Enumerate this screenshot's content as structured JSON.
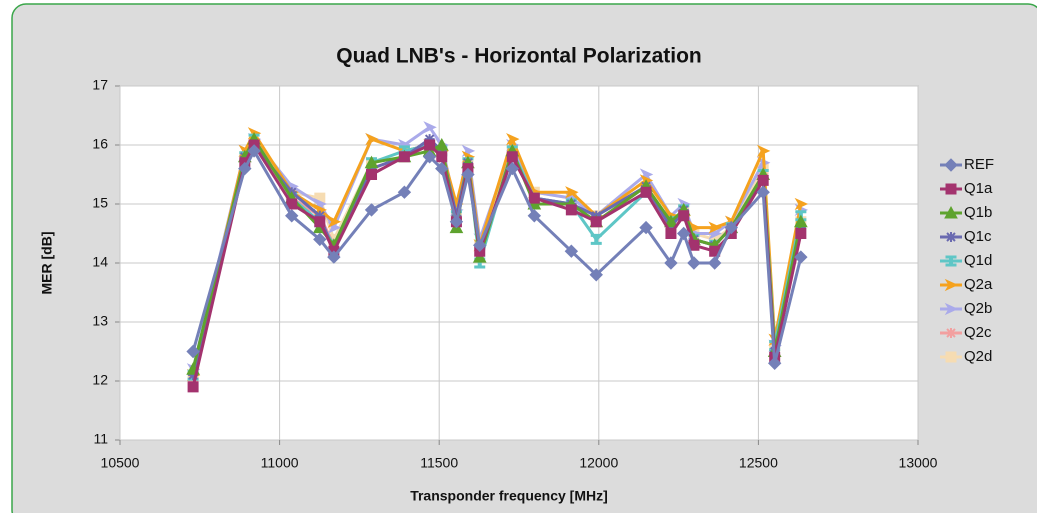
{
  "chart_data": {
    "type": "line",
    "title": "Quad LNB's - Horizontal Polarization",
    "xlabel": "Transponder frequency [MHz]",
    "ylabel": "MER [dB]",
    "x": [
      10729,
      10891,
      10920,
      11038,
      11126,
      11170,
      11288,
      11391,
      11470,
      11508,
      11554,
      11590,
      11627,
      11729,
      11798,
      11914,
      11992,
      12148,
      12226,
      12266,
      12298,
      12363,
      12415,
      12515,
      12551,
      12633
    ],
    "xlim": [
      10500,
      13000
    ],
    "xticks": [
      10500,
      11000,
      11500,
      12000,
      12500,
      13000
    ],
    "ylim": [
      11,
      17
    ],
    "yticks": [
      11,
      12,
      13,
      14,
      15,
      16,
      17
    ],
    "grid": true,
    "legend": "right",
    "series": [
      {
        "name": "REF",
        "color": "#7480b8",
        "marker": "diamond",
        "values": [
          12.5,
          15.6,
          15.9,
          14.8,
          14.4,
          14.1,
          14.9,
          15.2,
          15.8,
          15.6,
          14.7,
          15.5,
          14.3,
          15.6,
          14.8,
          14.2,
          13.8,
          14.6,
          14.0,
          14.5,
          14.0,
          14.0,
          14.6,
          15.2,
          12.3,
          14.1
        ]
      },
      {
        "name": "Q1a",
        "color": "#a3336e",
        "marker": "square",
        "values": [
          11.9,
          15.7,
          16.0,
          15.0,
          14.7,
          14.2,
          15.5,
          15.8,
          16.0,
          15.8,
          14.7,
          15.6,
          14.2,
          15.8,
          15.1,
          14.9,
          14.7,
          15.2,
          14.5,
          14.8,
          14.3,
          14.2,
          14.5,
          15.4,
          12.4,
          14.5
        ]
      },
      {
        "name": "Q1b",
        "color": "#5ea32e",
        "marker": "triangle",
        "values": [
          12.2,
          15.8,
          16.1,
          15.1,
          14.6,
          14.3,
          15.7,
          15.8,
          15.9,
          16.0,
          14.6,
          15.7,
          14.1,
          15.9,
          15.0,
          15.0,
          14.7,
          15.3,
          14.7,
          14.9,
          14.4,
          14.3,
          14.6,
          15.5,
          12.5,
          14.7
        ]
      },
      {
        "name": "Q1c",
        "color": "#6a6ab0",
        "marker": "cross",
        "values": [
          12.1,
          15.8,
          16.0,
          15.2,
          14.8,
          14.2,
          15.6,
          15.8,
          16.1,
          15.9,
          14.8,
          15.7,
          14.2,
          15.8,
          15.1,
          15.0,
          14.8,
          15.3,
          14.6,
          14.9,
          14.4,
          14.3,
          14.6,
          15.4,
          12.5,
          14.6
        ]
      },
      {
        "name": "Q1d",
        "color": "#5ec6c6",
        "marker": "bar",
        "values": [
          12.1,
          15.8,
          16.1,
          15.1,
          14.7,
          14.3,
          15.7,
          15.9,
          16.0,
          15.9,
          14.8,
          15.7,
          14.0,
          15.9,
          15.1,
          15.0,
          14.4,
          15.2,
          14.7,
          14.9,
          14.4,
          14.3,
          14.6,
          15.5,
          12.6,
          14.8
        ]
      },
      {
        "name": "Q2a",
        "color": "#f5a21e",
        "marker": "arrow",
        "values": [
          12.1,
          15.9,
          16.2,
          15.2,
          14.9,
          14.7,
          16.1,
          15.9,
          16.0,
          15.9,
          15.0,
          15.8,
          14.3,
          16.1,
          15.2,
          15.2,
          14.8,
          15.4,
          14.8,
          14.8,
          14.6,
          14.6,
          14.7,
          15.9,
          12.7,
          15.0
        ]
      },
      {
        "name": "Q2b",
        "color": "#aaaaea",
        "marker": "arrow",
        "values": [
          12.2,
          15.9,
          16.1,
          15.3,
          15.0,
          14.6,
          16.1,
          16.0,
          16.3,
          16.0,
          14.9,
          15.9,
          14.4,
          16.0,
          15.2,
          15.1,
          14.8,
          15.5,
          14.8,
          15.0,
          14.5,
          14.5,
          14.7,
          15.7,
          12.6,
          14.9
        ]
      },
      {
        "name": "Q2c",
        "color": "#f2a0a0",
        "marker": "cross",
        "values": [
          12.0,
          15.8,
          16.0,
          15.1,
          14.8,
          14.3,
          15.6,
          15.8,
          16.0,
          15.9,
          14.8,
          15.7,
          14.2,
          15.8,
          15.1,
          15.0,
          14.7,
          15.3,
          14.6,
          14.9,
          14.4,
          14.3,
          14.6,
          15.5,
          12.5,
          14.6
        ]
      },
      {
        "name": "Q2d",
        "color": "#f6dcb2",
        "marker": "square",
        "values": [
          12.1,
          15.8,
          16.0,
          15.2,
          15.1,
          14.4,
          15.7,
          15.9,
          16.0,
          15.9,
          14.8,
          15.7,
          14.3,
          15.9,
          15.2,
          15.1,
          14.8,
          15.3,
          14.7,
          14.9,
          14.5,
          14.4,
          14.6,
          15.6,
          12.6,
          14.7
        ]
      }
    ]
  }
}
